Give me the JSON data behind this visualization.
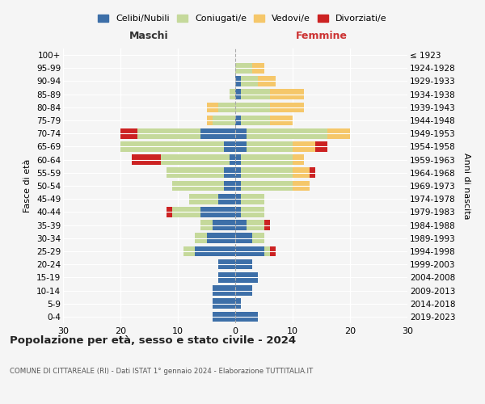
{
  "age_groups": [
    "0-4",
    "5-9",
    "10-14",
    "15-19",
    "20-24",
    "25-29",
    "30-34",
    "35-39",
    "40-44",
    "45-49",
    "50-54",
    "55-59",
    "60-64",
    "65-69",
    "70-74",
    "75-79",
    "80-84",
    "85-89",
    "90-94",
    "95-99",
    "100+"
  ],
  "birth_years": [
    "2019-2023",
    "2014-2018",
    "2009-2013",
    "2004-2008",
    "1999-2003",
    "1994-1998",
    "1989-1993",
    "1984-1988",
    "1979-1983",
    "1974-1978",
    "1969-1973",
    "1964-1968",
    "1959-1963",
    "1954-1958",
    "1949-1953",
    "1944-1948",
    "1939-1943",
    "1934-1938",
    "1929-1933",
    "1924-1928",
    "≤ 1923"
  ],
  "males": {
    "celibi": [
      4,
      4,
      4,
      3,
      3,
      7,
      5,
      4,
      6,
      3,
      2,
      2,
      1,
      2,
      6,
      0,
      0,
      0,
      0,
      0,
      0
    ],
    "coniugati": [
      0,
      0,
      0,
      0,
      0,
      2,
      2,
      2,
      5,
      5,
      9,
      10,
      12,
      18,
      11,
      4,
      3,
      1,
      0,
      0,
      0
    ],
    "vedovi": [
      0,
      0,
      0,
      0,
      0,
      0,
      0,
      0,
      0,
      0,
      0,
      0,
      0,
      0,
      0,
      1,
      2,
      0,
      0,
      0,
      0
    ],
    "divorziati": [
      0,
      0,
      0,
      0,
      0,
      0,
      0,
      0,
      1,
      0,
      0,
      0,
      5,
      0,
      3,
      0,
      0,
      0,
      0,
      0,
      0
    ]
  },
  "females": {
    "nubili": [
      4,
      1,
      3,
      4,
      3,
      5,
      3,
      2,
      1,
      1,
      1,
      1,
      1,
      2,
      2,
      1,
      0,
      1,
      1,
      0,
      0
    ],
    "coniugate": [
      0,
      0,
      0,
      0,
      0,
      1,
      2,
      3,
      4,
      4,
      9,
      9,
      9,
      8,
      14,
      5,
      6,
      5,
      3,
      3,
      0
    ],
    "vedove": [
      0,
      0,
      0,
      0,
      0,
      0,
      0,
      0,
      0,
      0,
      3,
      3,
      2,
      4,
      4,
      4,
      6,
      6,
      3,
      2,
      0
    ],
    "divorziate": [
      0,
      0,
      0,
      0,
      0,
      1,
      0,
      1,
      0,
      0,
      0,
      1,
      0,
      2,
      0,
      0,
      0,
      0,
      0,
      0,
      0
    ]
  },
  "colors": {
    "celibi": "#3d6fa8",
    "coniugati": "#c5d99b",
    "vedovi": "#f5c76a",
    "divorziati": "#cc2222"
  },
  "title": "Popolazione per età, sesso e stato civile - 2024",
  "subtitle": "COMUNE DI CITTAREALE (RI) - Dati ISTAT 1° gennaio 2024 - Elaborazione TUTTITALIA.IT",
  "xlabel_left": "Maschi",
  "xlabel_right": "Femmine",
  "ylabel_left": "Fasce di età",
  "ylabel_right": "Anni di nascita",
  "xlim": 30,
  "background_color": "#f5f5f5",
  "legend_labels": [
    "Celibi/Nubili",
    "Coniugati/e",
    "Vedovi/e",
    "Divorziati/e"
  ]
}
